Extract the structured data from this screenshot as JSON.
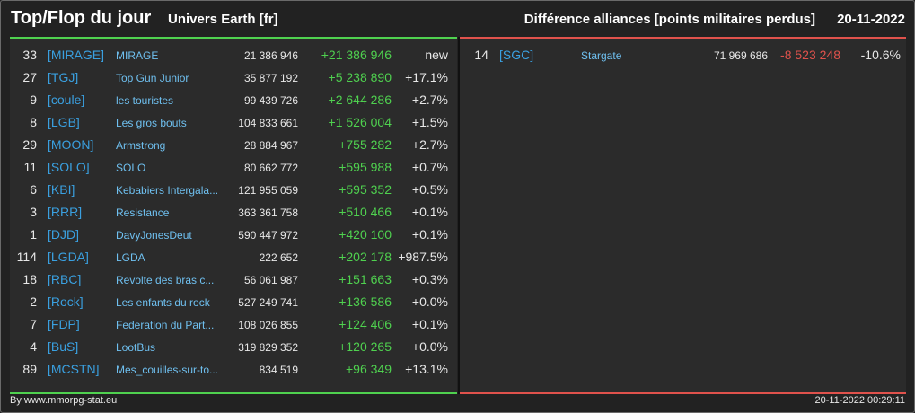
{
  "header": {
    "title": "Top/Flop du jour",
    "universe": "Univers Earth [fr]",
    "subtitle": "Différence alliances [points militaires perdus]",
    "date": "20-11-2022"
  },
  "top": [
    {
      "rank": "33",
      "tag": "[MIRAGE]",
      "name": "MIRAGE",
      "points": "21 386 946",
      "delta": "+21 386 946",
      "pct": "new"
    },
    {
      "rank": "27",
      "tag": "[TGJ]",
      "name": "Top Gun Junior",
      "points": "35 877 192",
      "delta": "+5 238 890",
      "pct": "+17.1%"
    },
    {
      "rank": "9",
      "tag": "[coule]",
      "name": "les touristes",
      "points": "99 439 726",
      "delta": "+2 644 286",
      "pct": "+2.7%"
    },
    {
      "rank": "8",
      "tag": "[LGB]",
      "name": "Les gros bouts",
      "points": "104 833 661",
      "delta": "+1 526 004",
      "pct": "+1.5%"
    },
    {
      "rank": "29",
      "tag": "[MOON]",
      "name": "Armstrong",
      "points": "28 884 967",
      "delta": "+755 282",
      "pct": "+2.7%"
    },
    {
      "rank": "11",
      "tag": "[SOLO]",
      "name": "SOLO",
      "points": "80 662 772",
      "delta": "+595 988",
      "pct": "+0.7%"
    },
    {
      "rank": "6",
      "tag": "[KBI]",
      "name": "Kebabiers Intergala...",
      "points": "121 955 059",
      "delta": "+595 352",
      "pct": "+0.5%"
    },
    {
      "rank": "3",
      "tag": "[RRR]",
      "name": "Resistance",
      "points": "363 361 758",
      "delta": "+510 466",
      "pct": "+0.1%"
    },
    {
      "rank": "1",
      "tag": "[DJD]",
      "name": "DavyJonesDeut",
      "points": "590 447 972",
      "delta": "+420 100",
      "pct": "+0.1%"
    },
    {
      "rank": "114",
      "tag": "[LGDA]",
      "name": "LGDA",
      "points": "222 652",
      "delta": "+202 178",
      "pct": "+987.5%"
    },
    {
      "rank": "18",
      "tag": "[RBC]",
      "name": "Revolte des bras c...",
      "points": "56 061 987",
      "delta": "+151 663",
      "pct": "+0.3%"
    },
    {
      "rank": "2",
      "tag": "[Rock]",
      "name": "Les enfants du rock",
      "points": "527 249 741",
      "delta": "+136 586",
      "pct": "+0.0%"
    },
    {
      "rank": "7",
      "tag": "[FDP]",
      "name": "Federation du Part...",
      "points": "108 026 855",
      "delta": "+124 406",
      "pct": "+0.1%"
    },
    {
      "rank": "4",
      "tag": "[BuS]",
      "name": "LootBus",
      "points": "319 829 352",
      "delta": "+120 265",
      "pct": "+0.0%"
    },
    {
      "rank": "89",
      "tag": "[MCSTN]",
      "name": "Mes_couilles-sur-to...",
      "points": "834 519",
      "delta": "+96 349",
      "pct": "+13.1%"
    }
  ],
  "flop": [
    {
      "rank": "14",
      "tag": "[SGC]",
      "name": "Stargate",
      "points": "71 969 686",
      "delta": "-8 523 248",
      "pct": "-10.6%"
    }
  ],
  "footer": {
    "source": "By www.mmorpg-stat.eu",
    "timestamp": "20-11-2022 00:29:11"
  },
  "colors": {
    "positive": "#4fd14f",
    "negative": "#e0524c",
    "tag": "#3aa0e0",
    "name": "#6fc0f0"
  }
}
